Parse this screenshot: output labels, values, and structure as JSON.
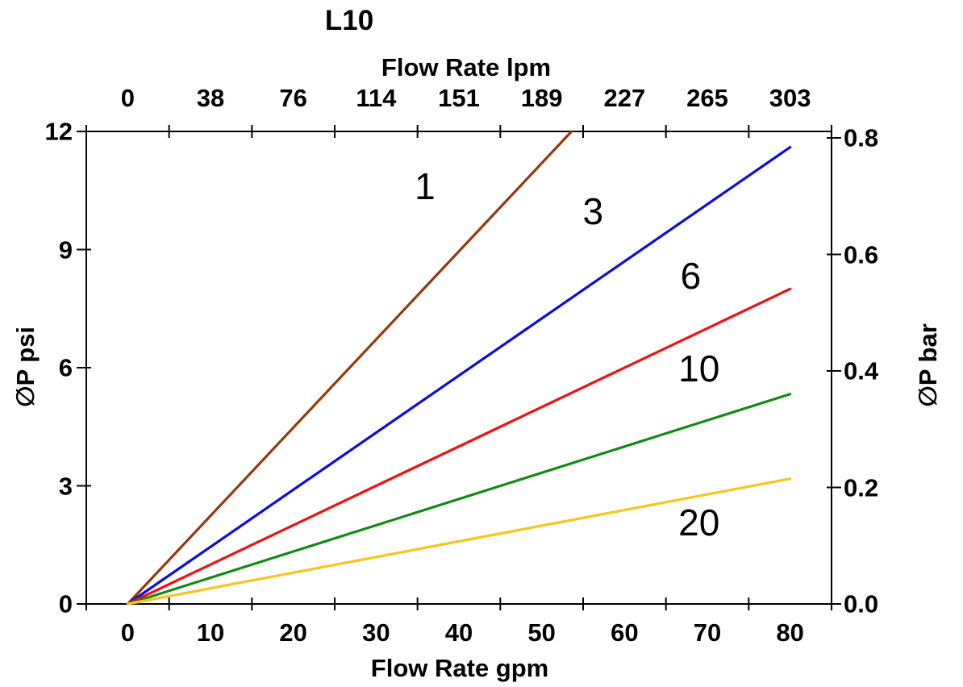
{
  "title": "L10",
  "chart_data": {
    "type": "line",
    "title": "L10",
    "grid": false,
    "legend_position": "inline curve labels",
    "axes": {
      "top": {
        "label": "Flow Rate lpm",
        "tick_labels": [
          "0",
          "38",
          "76",
          "114",
          "151",
          "189",
          "227",
          "265",
          "303"
        ]
      },
      "bottom": {
        "label": "Flow Rate gpm",
        "tick_labels": [
          "0",
          "10",
          "20",
          "30",
          "40",
          "50",
          "60",
          "70",
          "80"
        ],
        "range": [
          0,
          80
        ]
      },
      "left": {
        "label": "∅P psi",
        "tick_labels": [
          "0",
          "3",
          "6",
          "9",
          "12"
        ],
        "range": [
          0,
          12
        ]
      },
      "right": {
        "label": "∅P bar",
        "tick_labels": [
          "0.0",
          "0.2",
          "0.4",
          "0.6",
          "0.8"
        ],
        "range": [
          0,
          0.8
        ]
      }
    },
    "x_unit_note": "top axis lpm ticks correspond to gpm ticks (1 gpm = 3.785 lpm)",
    "series": [
      {
        "label": "1",
        "color": "#933A0D",
        "points_gpm_psi": [
          [
            0,
            0
          ],
          [
            53.6,
            12.0
          ]
        ],
        "psi_per_gpm": 0.224,
        "clipped_at_top": true,
        "label_pos_gpm_psi": [
          35.9,
          10.6
        ]
      },
      {
        "label": "3",
        "color": "#0D0DDB",
        "points_gpm_psi": [
          [
            0,
            0
          ],
          [
            80,
            11.6
          ]
        ],
        "psi_per_gpm": 0.145,
        "clipped_at_top": false,
        "label_pos_gpm_psi": [
          56.2,
          9.97
        ]
      },
      {
        "label": "6",
        "color": "#EE1111",
        "points_gpm_psi": [
          [
            0,
            0
          ],
          [
            80,
            8.0
          ]
        ],
        "psi_per_gpm": 0.1,
        "clipped_at_top": false,
        "label_pos_gpm_psi": [
          68.0,
          8.34
        ]
      },
      {
        "label": "10",
        "color": "#118A11",
        "points_gpm_psi": [
          [
            0,
            0
          ],
          [
            80,
            5.33
          ]
        ],
        "psi_per_gpm": 0.0666,
        "clipped_at_top": false,
        "label_pos_gpm_psi": [
          69.0,
          5.98
        ]
      },
      {
        "label": "20",
        "color": "#F6C51E",
        "points_gpm_psi": [
          [
            0,
            0
          ],
          [
            80,
            3.18
          ]
        ],
        "psi_per_gpm": 0.0398,
        "clipped_at_top": false,
        "label_pos_gpm_psi": [
          69.0,
          2.07
        ]
      }
    ]
  }
}
